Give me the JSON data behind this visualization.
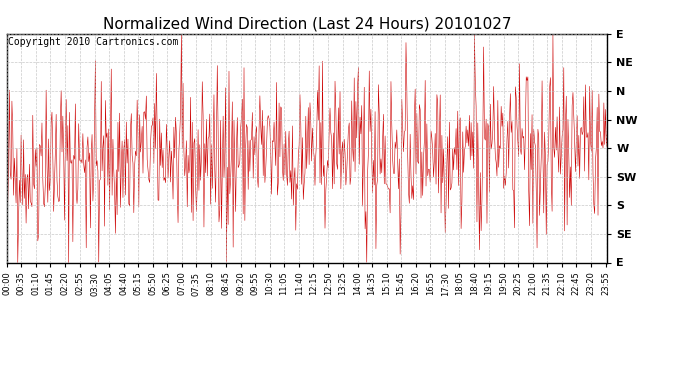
{
  "title": "Normalized Wind Direction (Last 24 Hours) 20101027",
  "copyright_text": "Copyright 2010 Cartronics.com",
  "line_color": "#cc0000",
  "background_color": "#ffffff",
  "grid_color": "#bbbbbb",
  "ytick_labels": [
    "E",
    "NE",
    "N",
    "NW",
    "W",
    "SW",
    "S",
    "SE",
    "E"
  ],
  "ytick_values": [
    1.0,
    0.875,
    0.75,
    0.625,
    0.5,
    0.375,
    0.25,
    0.125,
    0.0
  ],
  "ylim": [
    0.0,
    1.0
  ],
  "seed": 42,
  "title_fontsize": 11,
  "copyright_fontsize": 7,
  "tick_label_fontsize": 8,
  "xtick_fontsize": 6
}
